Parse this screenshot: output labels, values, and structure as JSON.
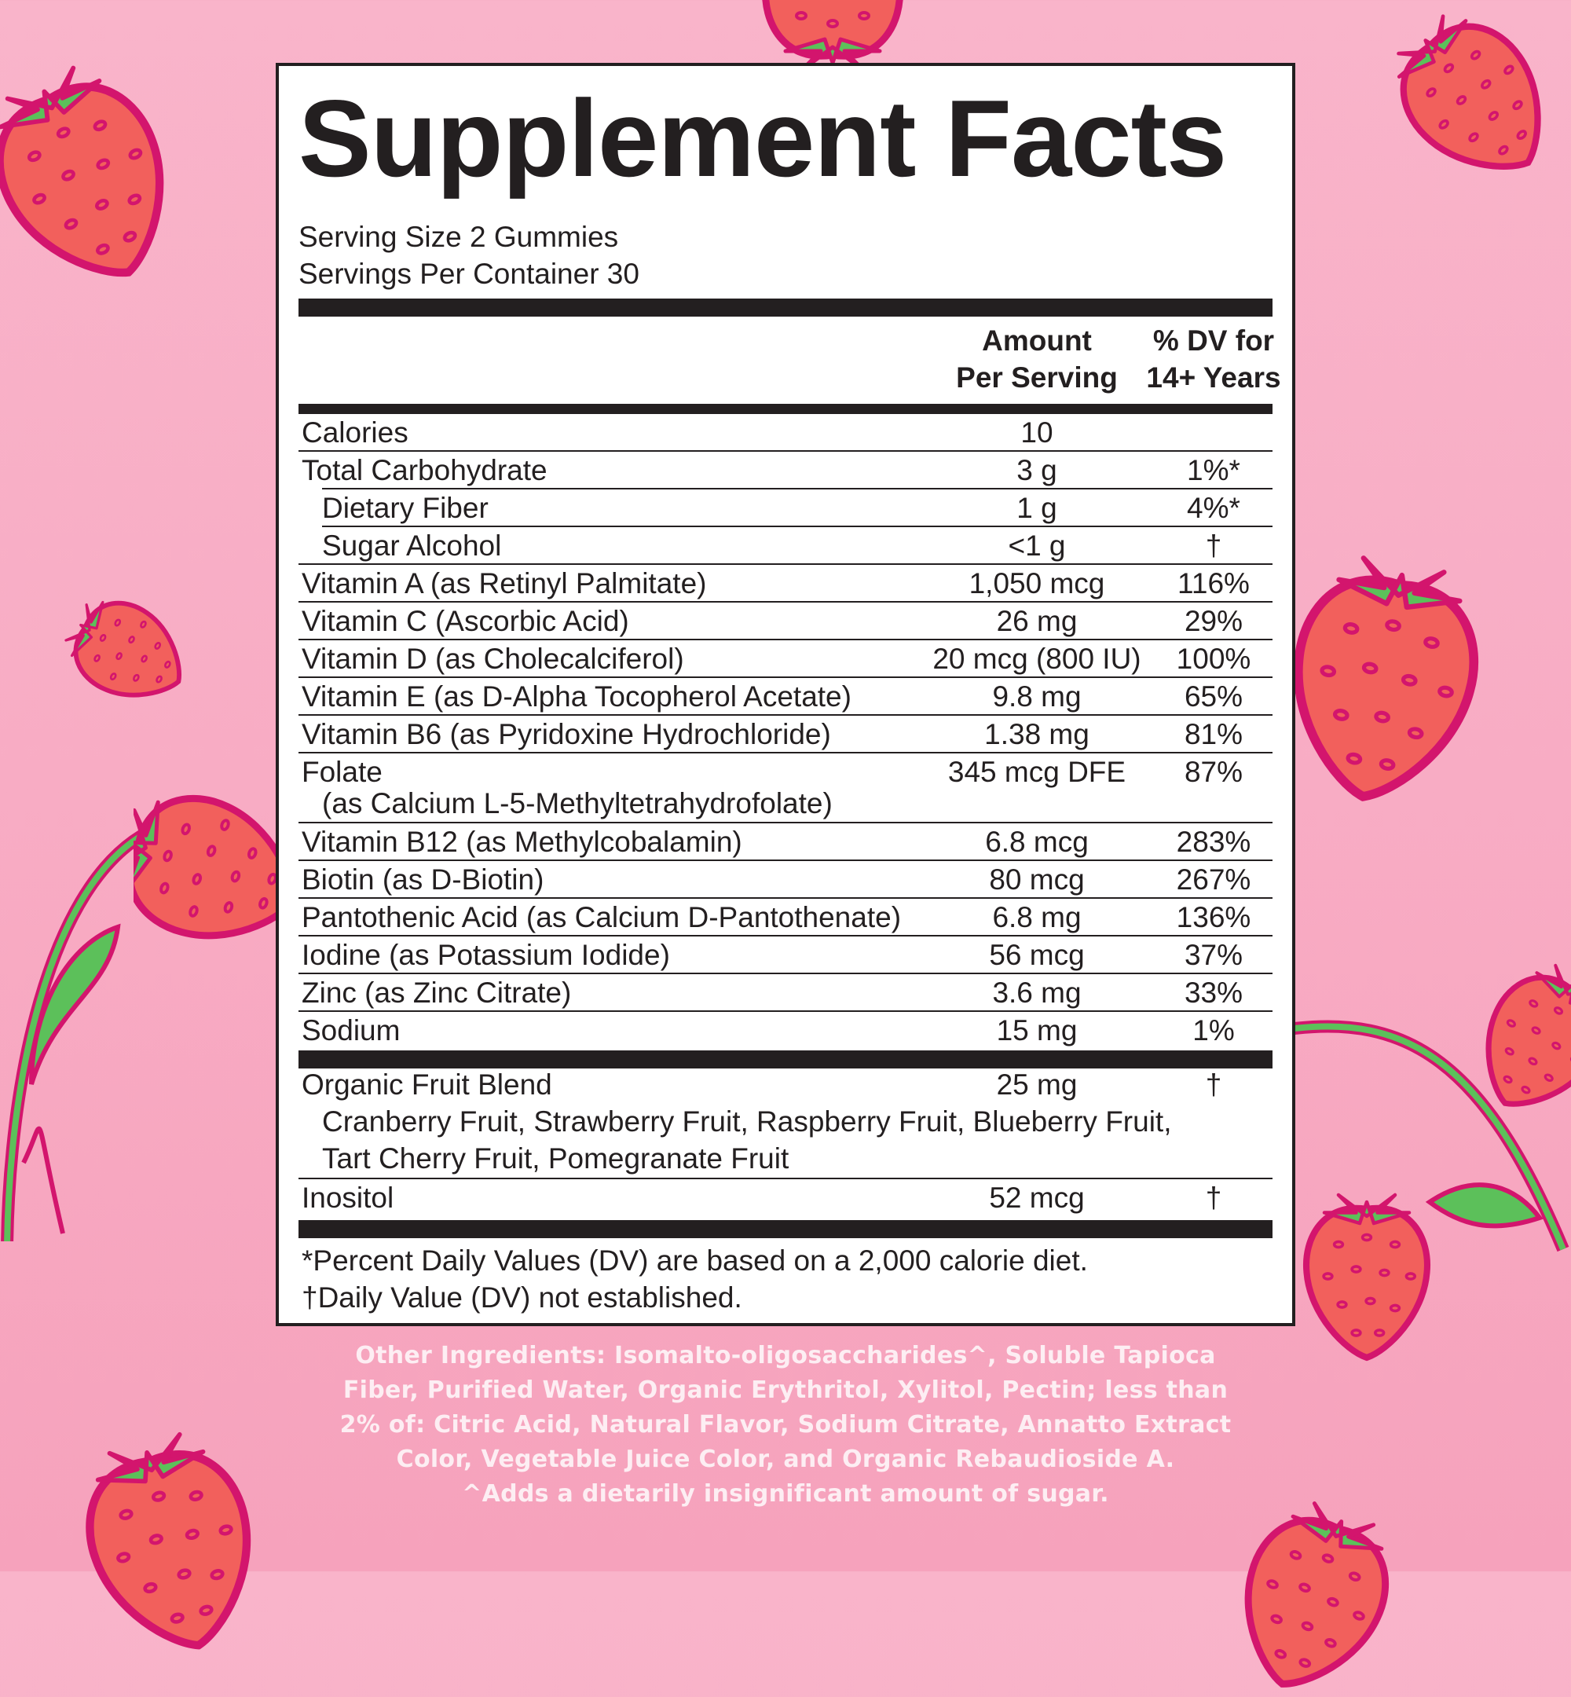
{
  "title": "Supplement Facts",
  "serving_size": "Serving Size 2 Gummies",
  "servings_per_container": "Servings Per Container 30",
  "header": {
    "amount_line1": "Amount",
    "amount_line2": "Per Serving",
    "dv_line1": "% DV for",
    "dv_line2": "14+ Years"
  },
  "nutrients": [
    {
      "name": "Calories",
      "amount": "10",
      "dv": ""
    },
    {
      "name": "Total Carbohydrate",
      "amount": "3 g",
      "dv": "1%*"
    },
    {
      "name": "Dietary Fiber",
      "amount": "1 g",
      "dv": "4%*",
      "sub": true
    },
    {
      "name": "Sugar Alcohol",
      "amount": "<1 g",
      "dv": "†",
      "sub": true
    },
    {
      "name": "Vitamin A (as Retinyl Palmitate)",
      "amount": "1,050 mcg",
      "dv": "116%"
    },
    {
      "name": "Vitamin C (Ascorbic Acid)",
      "amount": "26 mg",
      "dv": "29%"
    },
    {
      "name": "Vitamin D (as Cholecalciferol)",
      "amount": "20 mcg (800 IU)",
      "dv": "100%"
    },
    {
      "name": "Vitamin E (as D-Alpha Tocopherol Acetate)",
      "amount": "9.8 mg",
      "dv": "65%"
    },
    {
      "name": "Vitamin B6 (as Pyridoxine Hydrochloride)",
      "amount": "1.38 mg",
      "dv": "81%"
    },
    {
      "name": "Folate",
      "detail": "(as Calcium L-5-Methyltetrahydrofolate)",
      "amount": "345 mcg DFE",
      "dv": "87%"
    },
    {
      "name": "Vitamin B12 (as Methylcobalamin)",
      "amount": "6.8 mcg",
      "dv": "283%"
    },
    {
      "name": "Biotin (as D-Biotin)",
      "amount": "80 mcg",
      "dv": "267%"
    },
    {
      "name": "Pantothenic Acid (as Calcium D-Pantothenate)",
      "amount": "6.8 mg",
      "dv": "136%"
    },
    {
      "name": "Iodine (as Potassium Iodide)",
      "amount": "56 mcg",
      "dv": "37%"
    },
    {
      "name": "Zinc (as Zinc Citrate)",
      "amount": "3.6 mg",
      "dv": "33%"
    },
    {
      "name": "Sodium",
      "amount": "15 mg",
      "dv": "1%"
    }
  ],
  "fruit_blend": {
    "name": "Organic Fruit Blend",
    "amount": "25 mg",
    "dv": "†",
    "ingredients_line1": "Cranberry Fruit, Strawberry Fruit, Raspberry Fruit, Blueberry Fruit,",
    "ingredients_line2": "Tart Cherry Fruit, Pomegranate Fruit"
  },
  "inositol": {
    "name": "Inositol",
    "amount": "52 mcg",
    "dv": "†"
  },
  "footnotes": [
    "*Percent Daily Values (DV) are based on a 2,000 calorie diet.",
    "†Daily Value (DV) not established."
  ],
  "other_ingredients": [
    "Other Ingredients: Isomalto-oligosaccharides^, Soluble Tapioca",
    "Fiber, Purified Water, Organic Erythritol, Xylitol, Pectin; less than",
    "2% of: Citric Acid, Natural Flavor, Sodium Citrate, Annatto Extract",
    "Color, Vegetable Juice Color, and Organic Rebaudioside A.",
    "^Adds a dietarily insignificant amount of sugar."
  ],
  "colors": {
    "background": "#f8acc4",
    "berry": "#f2605c",
    "outline": "#d3156d",
    "leaf": "#5cc05a",
    "ink": "#231f20"
  }
}
